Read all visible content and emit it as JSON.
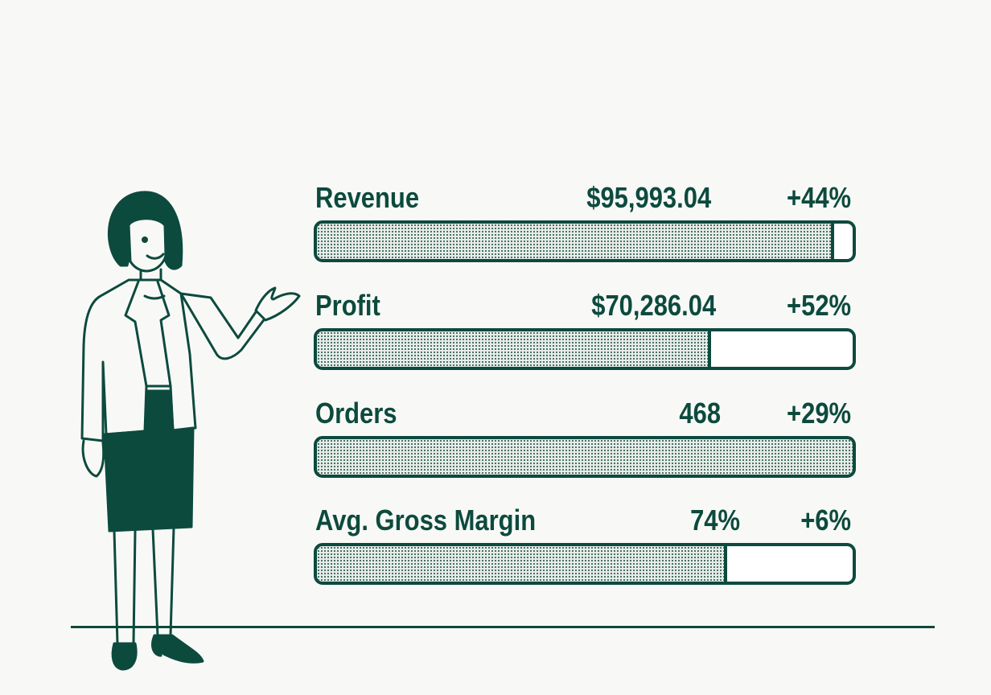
{
  "colors": {
    "ink": "#0d4a3e",
    "background": "#f8f9f6",
    "fill": "#e7ece8"
  },
  "illustration": {
    "subject": "presenter-woman"
  },
  "chart_data": {
    "type": "bar",
    "orientation": "horizontal-progress",
    "categories": [
      "Revenue",
      "Profit",
      "Orders",
      "Avg. Gross Margin"
    ],
    "values": [
      "$95,993.04",
      "$70,286.04",
      "468",
      "74%"
    ],
    "changes": [
      "+44%",
      "+52%",
      "+29%",
      "+6%"
    ],
    "fill_fraction": [
      0.96,
      0.73,
      1.0,
      0.76
    ],
    "grid": false
  }
}
